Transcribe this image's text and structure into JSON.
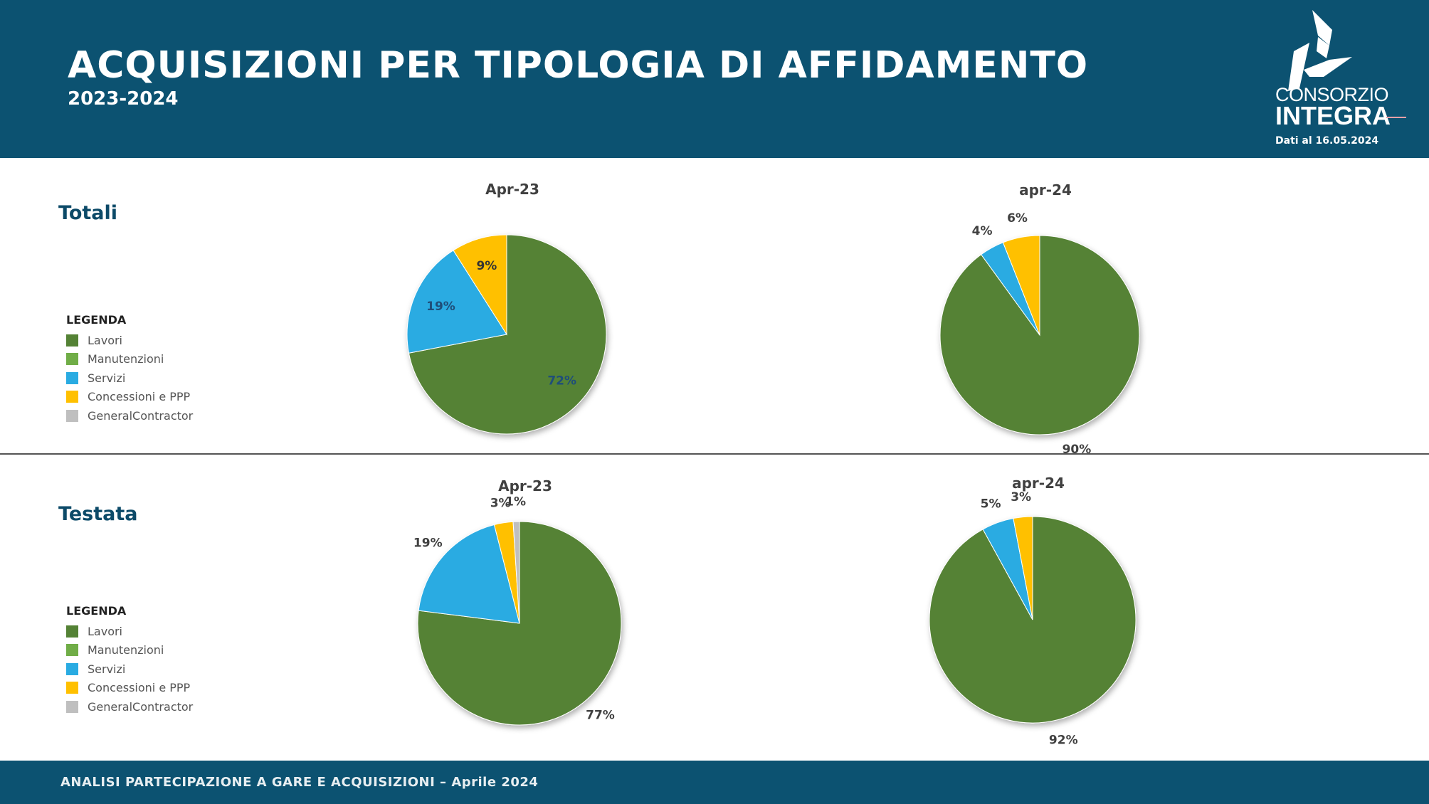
{
  "header": {
    "title": "ACQUISIZIONI PER TIPOLOGIA DI AFFIDAMENTO",
    "subtitle": "2023-2024",
    "logo_line1": "CONSORZIO",
    "logo_line2": "INTEGRA",
    "date": "Dati al 16.05.2024"
  },
  "sections": [
    {
      "label": "Totali"
    },
    {
      "label": "Testata"
    }
  ],
  "legend": {
    "title": "LEGENDA",
    "items": [
      {
        "label": "Lavori",
        "color": "#548235"
      },
      {
        "label": "Manutenzioni",
        "color": "#70AD47"
      },
      {
        "label": "Servizi",
        "color": "#29ABE2"
      },
      {
        "label": "Concessioni e PPP",
        "color": "#FFC000"
      },
      {
        "label": "GeneralContractor",
        "color": "#BFBFBF"
      }
    ]
  },
  "chart_data": [
    {
      "type": "pie",
      "section": "Totali",
      "title": "Apr-23",
      "categories": [
        "Lavori",
        "Manutenzioni",
        "Servizi",
        "Concessioni e PPP",
        "GeneralContractor"
      ],
      "values": [
        72,
        0,
        19,
        9,
        0
      ],
      "labels": [
        "72%",
        "",
        "19%",
        "9%",
        ""
      ],
      "label_position": "inside"
    },
    {
      "type": "pie",
      "section": "Totali",
      "title": "apr-24",
      "categories": [
        "Lavori",
        "Manutenzioni",
        "Servizi",
        "Concessioni e PPP",
        "GeneralContractor"
      ],
      "values": [
        90,
        0,
        4,
        6,
        0
      ],
      "labels": [
        "90%",
        "",
        "4%",
        "6%",
        ""
      ],
      "label_position": "outside"
    },
    {
      "type": "pie",
      "section": "Testata",
      "title": "Apr-23",
      "categories": [
        "Lavori",
        "Manutenzioni",
        "Servizi",
        "Concessioni e PPP",
        "GeneralContractor"
      ],
      "values": [
        77,
        0,
        19,
        3,
        1
      ],
      "labels": [
        "77%",
        "",
        "19%",
        "3%",
        "1%"
      ],
      "label_position": "outside"
    },
    {
      "type": "pie",
      "section": "Testata",
      "title": "apr-24",
      "categories": [
        "Lavori",
        "Manutenzioni",
        "Servizi",
        "Concessioni e PPP",
        "GeneralContractor"
      ],
      "values": [
        92,
        0,
        5,
        3,
        0
      ],
      "labels": [
        "92%",
        "",
        "5%",
        "3%",
        ""
      ],
      "label_position": "outside"
    }
  ],
  "footer": {
    "text": "ANALISI PARTECIPAZIONE A GARE E ACQUISIZIONI – Aprile 2024"
  }
}
